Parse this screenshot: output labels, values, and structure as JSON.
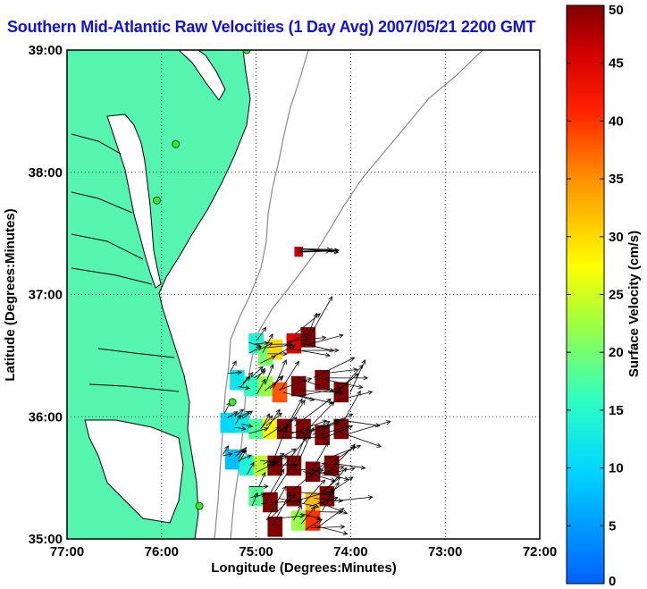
{
  "chart_data": {
    "type": "heatmap",
    "title": "Southern Mid-Atlantic Raw Velocities (1 Day Avg) 2007/05/21 2200 GMT",
    "xlabel": "Longitude (Degrees:Minutes)",
    "ylabel": "Latitude (Degrees:Minutes)",
    "xlim": [
      -77,
      -72
    ],
    "ylim": [
      35,
      39
    ],
    "x_ticks": [
      {
        "value": -77,
        "label": "77:00"
      },
      {
        "value": -76,
        "label": "76:00"
      },
      {
        "value": -75,
        "label": "75:00"
      },
      {
        "value": -74,
        "label": "74:00"
      },
      {
        "value": -73,
        "label": "73:00"
      },
      {
        "value": -72,
        "label": "72:00"
      }
    ],
    "y_ticks": [
      {
        "value": 35,
        "label": "35:00"
      },
      {
        "value": 36,
        "label": "36:00"
      },
      {
        "value": 37,
        "label": "37:00"
      },
      {
        "value": 38,
        "label": "38:00"
      },
      {
        "value": 39,
        "label": "39:00"
      }
    ],
    "grid": true,
    "colorbar": {
      "label": "Surface Velocity (cm/s)",
      "range": [
        0,
        50
      ],
      "ticks": [
        0,
        5,
        10,
        15,
        20,
        25,
        30,
        35,
        40,
        45,
        50
      ],
      "colormap": "jet"
    },
    "land_color": "#55f5b0",
    "stations": [
      {
        "lon": -75.1,
        "lat": 39.0
      },
      {
        "lon": -75.85,
        "lat": 38.23
      },
      {
        "lon": -76.05,
        "lat": 37.77
      },
      {
        "lon": -75.25,
        "lat": 36.12
      },
      {
        "lon": -75.6,
        "lat": 35.27
      }
    ],
    "velocity_cells": [
      {
        "lon": -74.55,
        "lat": 37.35,
        "speed": 46
      },
      {
        "lon": -75.0,
        "lat": 36.6,
        "speed": 14
      },
      {
        "lon": -74.9,
        "lat": 36.5,
        "speed": 20
      },
      {
        "lon": -74.8,
        "lat": 36.55,
        "speed": 30
      },
      {
        "lon": -74.6,
        "lat": 36.6,
        "speed": 45
      },
      {
        "lon": -74.45,
        "lat": 36.65,
        "speed": 50
      },
      {
        "lon": -75.2,
        "lat": 36.3,
        "speed": 12
      },
      {
        "lon": -75.05,
        "lat": 36.25,
        "speed": 16
      },
      {
        "lon": -74.9,
        "lat": 36.25,
        "speed": 22
      },
      {
        "lon": -74.75,
        "lat": 36.2,
        "speed": 38
      },
      {
        "lon": -74.55,
        "lat": 36.25,
        "speed": 50
      },
      {
        "lon": -74.3,
        "lat": 36.3,
        "speed": 50
      },
      {
        "lon": -74.1,
        "lat": 36.2,
        "speed": 50
      },
      {
        "lon": -75.3,
        "lat": 35.95,
        "speed": 10
      },
      {
        "lon": -75.15,
        "lat": 35.95,
        "speed": 12
      },
      {
        "lon": -75.0,
        "lat": 35.9,
        "speed": 18
      },
      {
        "lon": -74.85,
        "lat": 35.9,
        "speed": 28
      },
      {
        "lon": -74.7,
        "lat": 35.9,
        "speed": 50
      },
      {
        "lon": -74.5,
        "lat": 35.9,
        "speed": 50
      },
      {
        "lon": -74.3,
        "lat": 35.85,
        "speed": 50
      },
      {
        "lon": -74.1,
        "lat": 35.9,
        "speed": 50
      },
      {
        "lon": -75.25,
        "lat": 35.65,
        "speed": 8
      },
      {
        "lon": -75.1,
        "lat": 35.6,
        "speed": 14
      },
      {
        "lon": -74.95,
        "lat": 35.6,
        "speed": 24
      },
      {
        "lon": -74.8,
        "lat": 35.6,
        "speed": 50
      },
      {
        "lon": -74.6,
        "lat": 35.6,
        "speed": 50
      },
      {
        "lon": -74.4,
        "lat": 35.55,
        "speed": 50
      },
      {
        "lon": -74.2,
        "lat": 35.6,
        "speed": 50
      },
      {
        "lon": -75.0,
        "lat": 35.35,
        "speed": 18
      },
      {
        "lon": -74.85,
        "lat": 35.3,
        "speed": 50
      },
      {
        "lon": -74.6,
        "lat": 35.35,
        "speed": 50
      },
      {
        "lon": -74.4,
        "lat": 35.3,
        "speed": 32
      },
      {
        "lon": -74.25,
        "lat": 35.35,
        "speed": 50
      },
      {
        "lon": -74.8,
        "lat": 35.1,
        "speed": 50
      },
      {
        "lon": -74.55,
        "lat": 35.15,
        "speed": 22
      },
      {
        "lon": -74.4,
        "lat": 35.15,
        "speed": 40
      }
    ]
  }
}
